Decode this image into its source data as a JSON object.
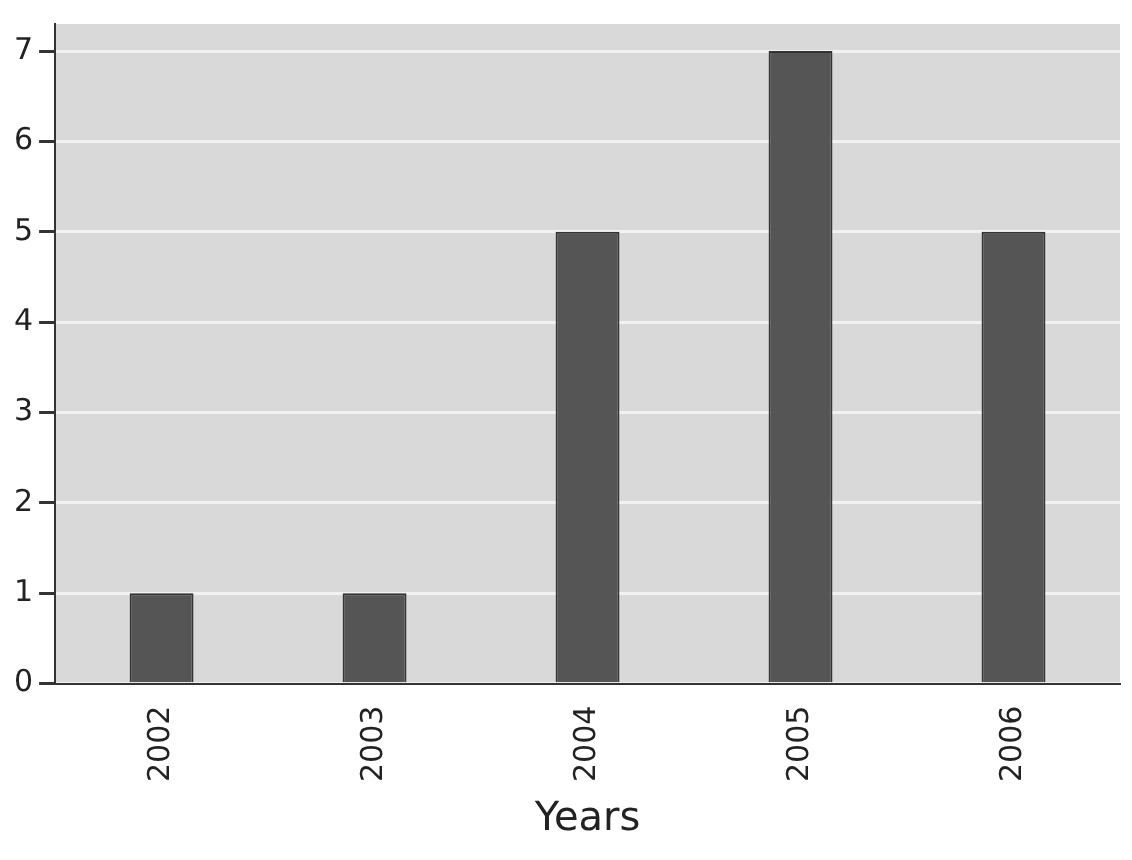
{
  "chart_data": {
    "type": "bar",
    "xlabel": "Years",
    "categories": [
      "2002",
      "2003",
      "2004",
      "2005",
      "2006"
    ],
    "values": [
      1,
      1,
      5,
      7,
      5
    ],
    "color": "#555555",
    "ylim": [
      0,
      7.3
    ],
    "yticks": [
      0,
      1,
      2,
      3,
      4,
      5,
      6,
      7
    ],
    "grid": "y"
  }
}
